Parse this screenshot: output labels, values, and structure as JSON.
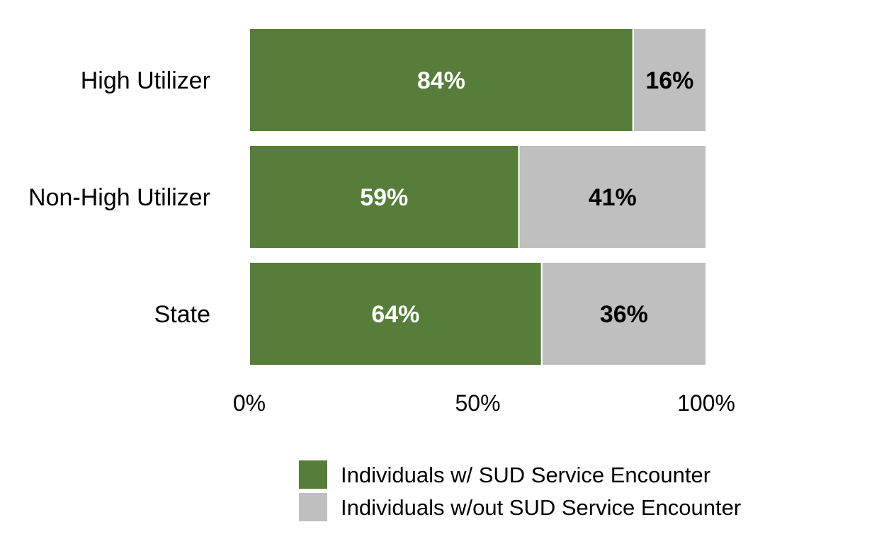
{
  "chart_data": {
    "type": "bar",
    "orientation": "horizontal",
    "stacked": true,
    "categories": [
      "High Utilizer",
      "Non-High Utilizer",
      "State"
    ],
    "series": [
      {
        "name": "Individuals w/ SUD Service Encounter",
        "values": [
          84,
          59,
          64
        ],
        "labels": [
          "84%",
          "59%",
          "64%"
        ],
        "color": "#567e3a",
        "label_color": "#ffffff"
      },
      {
        "name": "Individuals w/out SUD Service Encounter",
        "values": [
          16,
          41,
          36
        ],
        "labels": [
          "16%",
          "41%",
          "36%"
        ],
        "color": "#bfbfbf",
        "label_color": "#000000"
      }
    ],
    "xlim": [
      0,
      100
    ],
    "xticks": [
      0,
      50,
      100
    ],
    "xtick_labels": [
      "0%",
      "50%",
      "100%"
    ],
    "grid": false,
    "legend_position": "bottom"
  }
}
